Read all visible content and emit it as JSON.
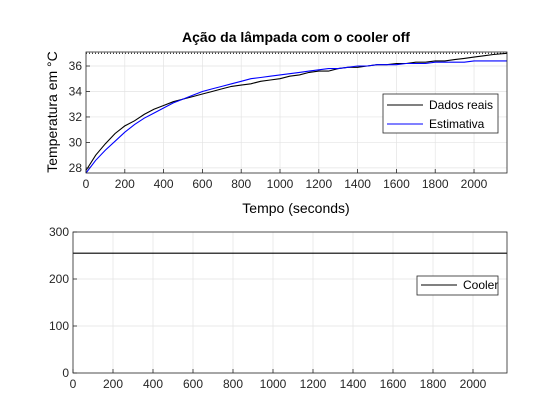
{
  "chart_data": [
    {
      "type": "line",
      "title": "Ação da lâmpada com o cooler off",
      "xlabel": "Tempo (seconds)",
      "ylabel": "Temperatura em °C",
      "xlim": [
        0,
        2170
      ],
      "ylim": [
        27.6,
        37.1
      ],
      "xticks": [
        0,
        200,
        400,
        600,
        800,
        1000,
        1200,
        1400,
        1600,
        1800,
        2000
      ],
      "yticks": [
        28,
        30,
        32,
        34,
        36
      ],
      "grid": true,
      "legend": "right",
      "reference_line": {
        "y": 37.0,
        "style": "dotted"
      },
      "series": [
        {
          "name": "Dados reais",
          "color": "#000000",
          "x": [
            0,
            50,
            100,
            150,
            200,
            250,
            300,
            350,
            400,
            450,
            500,
            550,
            600,
            650,
            700,
            750,
            800,
            850,
            900,
            950,
            1000,
            1050,
            1100,
            1150,
            1200,
            1250,
            1300,
            1350,
            1400,
            1450,
            1500,
            1550,
            1600,
            1650,
            1700,
            1750,
            1800,
            1850,
            1900,
            1950,
            2000,
            2050,
            2100,
            2170
          ],
          "y": [
            27.8,
            29.0,
            29.9,
            30.7,
            31.3,
            31.7,
            32.2,
            32.6,
            32.9,
            33.2,
            33.4,
            33.6,
            33.8,
            34.0,
            34.2,
            34.4,
            34.5,
            34.6,
            34.8,
            34.9,
            35.0,
            35.2,
            35.3,
            35.5,
            35.6,
            35.6,
            35.8,
            35.9,
            35.9,
            36.0,
            36.1,
            36.1,
            36.2,
            36.2,
            36.3,
            36.3,
            36.4,
            36.4,
            36.5,
            36.6,
            36.7,
            36.8,
            36.9,
            37.0
          ]
        },
        {
          "name": "Estimativa",
          "color": "#0000ff",
          "x": [
            0,
            50,
            100,
            150,
            200,
            250,
            300,
            350,
            400,
            450,
            500,
            550,
            600,
            650,
            700,
            750,
            800,
            850,
            900,
            950,
            1000,
            1050,
            1100,
            1150,
            1200,
            1250,
            1300,
            1350,
            1400,
            1450,
            1500,
            1550,
            1600,
            1650,
            1700,
            1750,
            1800,
            1850,
            1900,
            1950,
            2000,
            2050,
            2100,
            2170
          ],
          "y": [
            27.6,
            28.6,
            29.4,
            30.1,
            30.8,
            31.4,
            31.9,
            32.3,
            32.7,
            33.1,
            33.4,
            33.7,
            34.0,
            34.2,
            34.4,
            34.6,
            34.8,
            35.0,
            35.1,
            35.2,
            35.3,
            35.4,
            35.5,
            35.6,
            35.7,
            35.8,
            35.8,
            35.9,
            36.0,
            36.0,
            36.1,
            36.1,
            36.1,
            36.2,
            36.2,
            36.2,
            36.3,
            36.3,
            36.3,
            36.3,
            36.4,
            36.4,
            36.4,
            36.4
          ]
        }
      ]
    },
    {
      "type": "line",
      "title": "",
      "xlabel": "",
      "ylabel": "",
      "xlim": [
        0,
        2170
      ],
      "ylim": [
        0,
        300
      ],
      "xticks": [
        0,
        200,
        400,
        600,
        800,
        1000,
        1200,
        1400,
        1600,
        1800,
        2000
      ],
      "yticks": [
        0,
        100,
        200,
        300
      ],
      "grid": true,
      "legend": "right",
      "series": [
        {
          "name": "Cooler",
          "color": "#000000",
          "x": [
            0,
            2170
          ],
          "y": [
            255,
            255
          ]
        }
      ]
    }
  ]
}
